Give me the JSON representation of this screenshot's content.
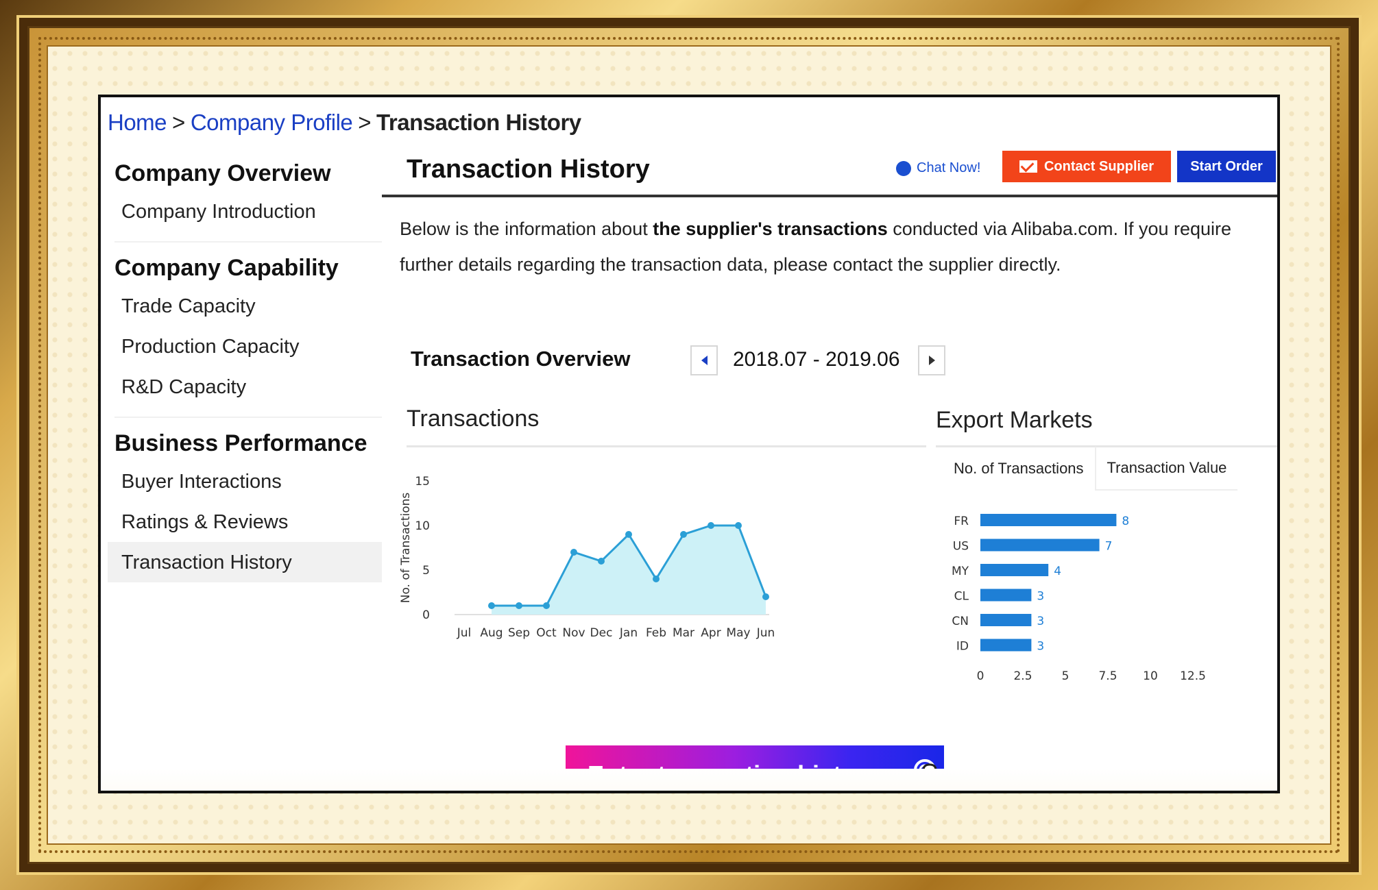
{
  "breadcrumb": {
    "home": "Home",
    "sep1": ">",
    "profile": "Company Profile",
    "sep2": ">",
    "current": "Transaction History"
  },
  "sidebar": {
    "groups": [
      {
        "heading": "Company Overview",
        "items": [
          "Company Introduction"
        ]
      },
      {
        "heading": "Company Capability",
        "items": [
          "Trade Capacity",
          "Production Capacity",
          "R&D Capacity"
        ]
      },
      {
        "heading": "Business Performance",
        "items": [
          "Buyer Interactions",
          "Ratings & Reviews",
          "Transaction History"
        ]
      }
    ],
    "active_item": "Transaction History"
  },
  "header": {
    "title": "Transaction History",
    "chat_label": "Chat Now!",
    "contact_label": "Contact Supplier",
    "order_label": "Start Order"
  },
  "description": {
    "part1": "Below is the information about ",
    "bold": "the supplier's transactions",
    "part2": " conducted via Alibaba.com. If you require further details regarding the transaction data, please contact the supplier directly."
  },
  "overview": {
    "title": "Transaction Overview",
    "range": "2018.07 - 2019.06"
  },
  "transactions_section": {
    "title": "Transactions"
  },
  "export_section": {
    "title": "Export Markets",
    "tabs": [
      "No. of Transactions",
      "Transaction Value"
    ],
    "active_tab": "No. of Transactions"
  },
  "enter_button": {
    "label": "Enter transaction history"
  },
  "colors": {
    "link": "#1a3fc4",
    "contact": "#f2441a",
    "order": "#1335c7",
    "line": "#2b9fd6",
    "area": "#cdf1f7",
    "bar": "#1e7fd6"
  },
  "icons": [
    "chat-icon",
    "mail-icon",
    "chevron-left-icon",
    "chevron-right-icon",
    "hand-pointer-icon"
  ],
  "chart_data": [
    {
      "type": "area",
      "ylabel": "No. of Transactions",
      "xlabel": "",
      "categories": [
        "Jul",
        "Aug",
        "Sep",
        "Oct",
        "Nov",
        "Dec",
        "Jan",
        "Feb",
        "Mar",
        "Apr",
        "May",
        "Jun"
      ],
      "values": [
        null,
        1,
        1,
        1,
        7,
        6,
        9,
        4,
        9,
        10,
        10,
        2
      ],
      "ylim": [
        0,
        15
      ],
      "yticks": [
        0,
        5,
        10,
        15
      ],
      "grid": false
    },
    {
      "type": "bar",
      "orientation": "horizontal",
      "categories": [
        "FR",
        "US",
        "MY",
        "CL",
        "CN",
        "ID"
      ],
      "values": [
        8,
        7,
        4,
        3,
        3,
        3
      ],
      "xlim": [
        0,
        12.5
      ],
      "xticks": [
        0,
        2.5,
        5,
        7.5,
        10,
        12.5
      ],
      "xtick_labels": [
        "0",
        "2.5",
        "5",
        "7.5",
        "10",
        "12.5"
      ],
      "grid": false
    }
  ]
}
